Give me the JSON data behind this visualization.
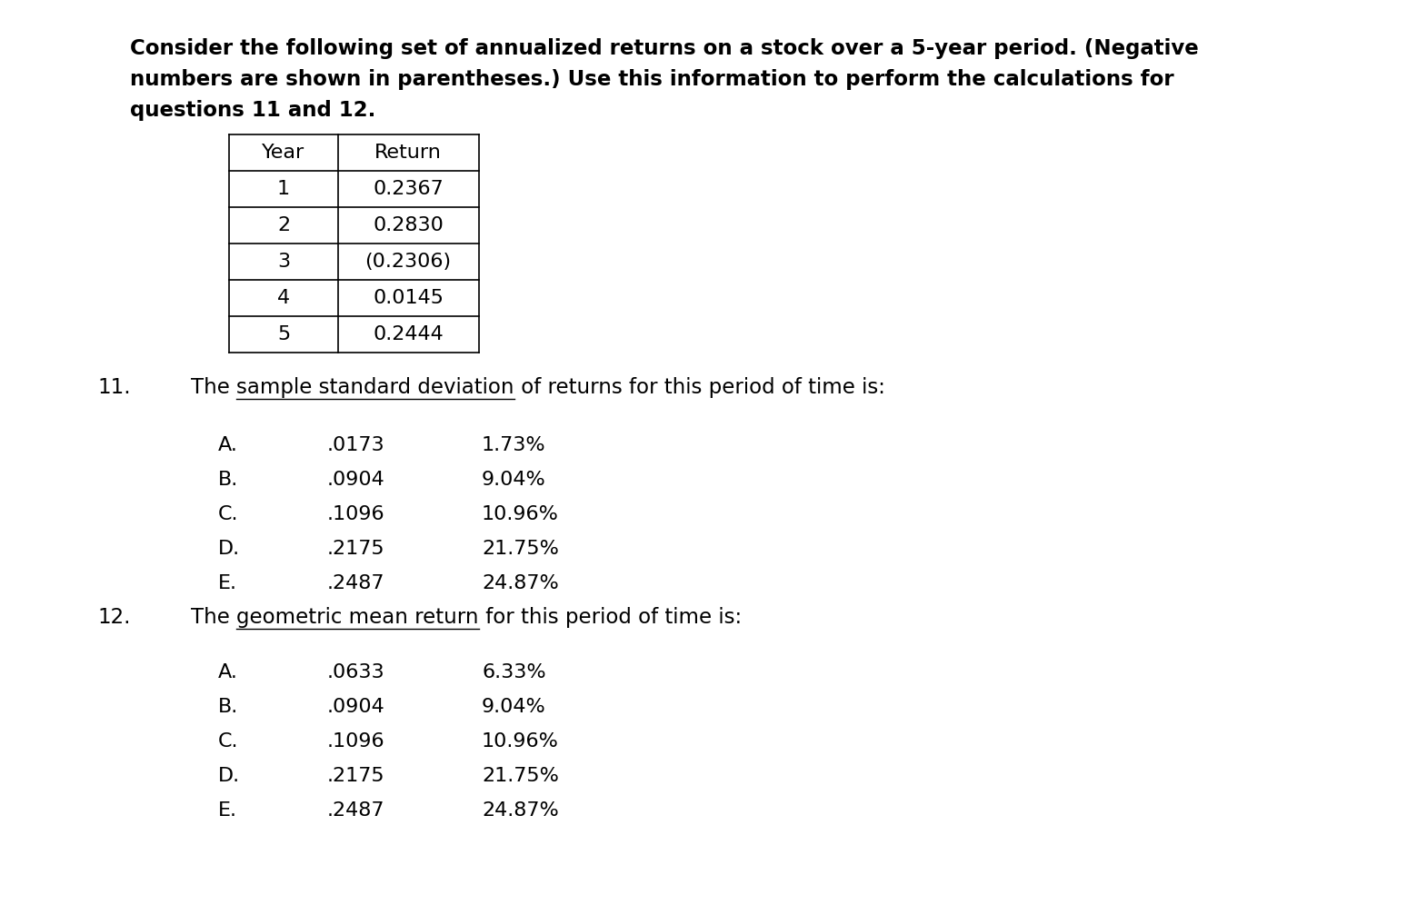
{
  "background_color": "#ffffff",
  "intro_text_lines": [
    "Consider the following set of annualized returns on a stock over a 5-year period. (Negative",
    "numbers are shown in parentheses.) Use this information to perform the calculations for",
    "questions 11 and 12."
  ],
  "table_headers": [
    "Year",
    "Return"
  ],
  "table_rows": [
    [
      "1",
      "0.2367"
    ],
    [
      "2",
      "0.2830"
    ],
    [
      "3",
      "(0.2306)"
    ],
    [
      "4",
      "0.0145"
    ],
    [
      "5",
      "0.2444"
    ]
  ],
  "q11_number": "11.",
  "q11_text_prefix": "The ",
  "q11_text_underline": "sample standard deviation",
  "q11_text_suffix": " of returns for this period of time is:",
  "q11_choices": [
    [
      "A.",
      ".0173",
      "1.73%"
    ],
    [
      "B.",
      ".0904",
      "9.04%"
    ],
    [
      "C.",
      ".1096",
      "10.96%"
    ],
    [
      "D.",
      ".2175",
      "21.75%"
    ],
    [
      "E.",
      ".2487",
      "24.87%"
    ]
  ],
  "q12_number": "12.",
  "q12_text_prefix": "The ",
  "q12_text_underline": "geometric mean return",
  "q12_text_suffix": " for this period of time is:",
  "q12_choices": [
    [
      "A.",
      ".0633",
      "6.33%"
    ],
    [
      "B.",
      ".0904",
      "9.04%"
    ],
    [
      "C.",
      ".1096",
      "10.96%"
    ],
    [
      "D.",
      ".2175",
      "21.75%"
    ],
    [
      "E.",
      ".2487",
      "24.87%"
    ]
  ],
  "font_size_intro": 16.5,
  "font_size_table": 16.0,
  "font_size_question": 16.5,
  "font_size_choices": 16.0,
  "text_color": "#000000",
  "table_border_color": "#000000",
  "fig_width": 15.48,
  "fig_height": 9.96,
  "dpi": 100
}
